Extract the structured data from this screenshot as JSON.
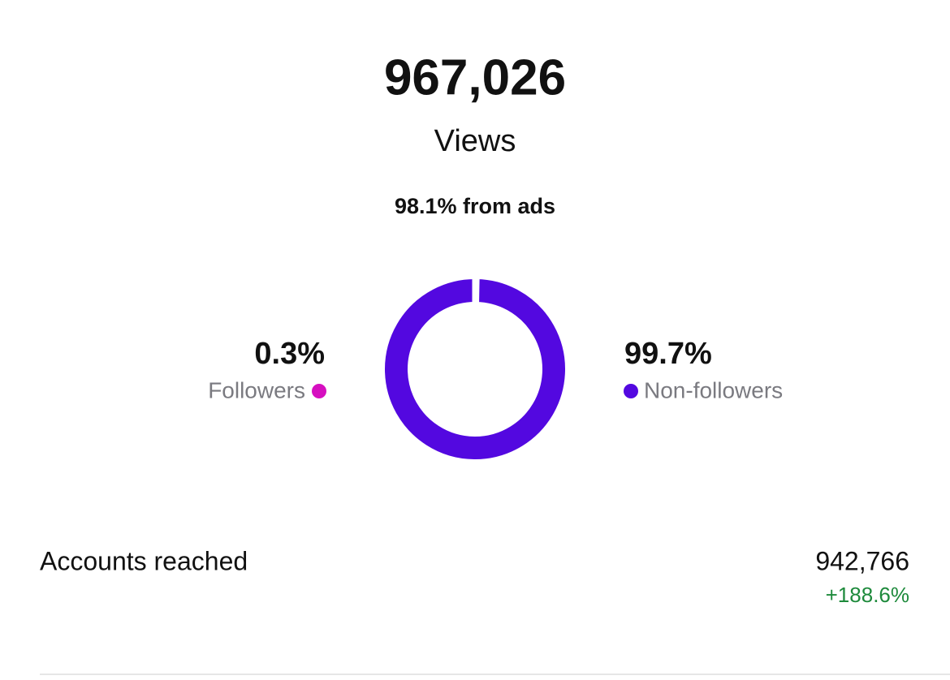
{
  "header": {
    "value": "967,026",
    "label": "Views",
    "subtitle": "98.1% from ads"
  },
  "chart_data": {
    "type": "donut",
    "categories": [
      "Followers",
      "Non-followers"
    ],
    "values": [
      0.3,
      99.7
    ],
    "value_labels": [
      "0.3%",
      "99.7%"
    ],
    "colors": [
      "#d60fc0",
      "#5308e0"
    ]
  },
  "stats": [
    {
      "label": "Accounts reached",
      "value": "942,766",
      "change": "+188.6%"
    }
  ]
}
